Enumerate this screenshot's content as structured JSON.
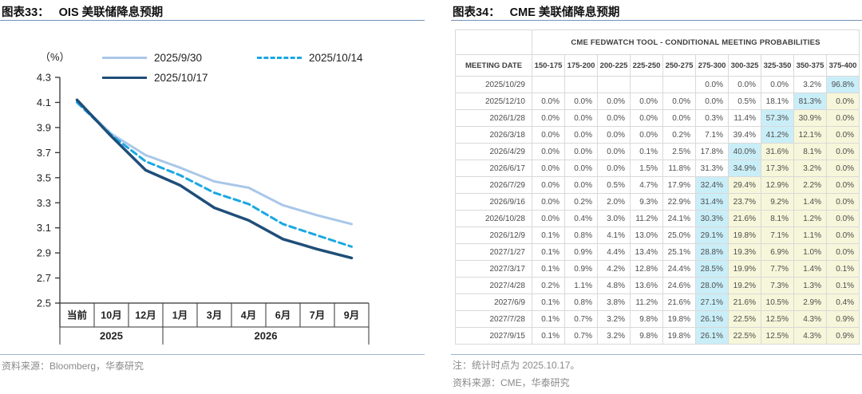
{
  "left_panel": {
    "figure_label": "图表33：",
    "figure_title": "OIS 美联储降息预期",
    "unit_label": "（%）",
    "source_note": "资料来源：Bloomberg，华泰研究"
  },
  "right_panel": {
    "figure_label": "图表34：",
    "figure_title": "CME 美联储降息预期",
    "note": "注：统计时点为 2025.10.17。",
    "source_note": "资料来源：CME，华泰研究"
  },
  "chart_data": [
    {
      "type": "line",
      "title": "OIS 美联储降息预期",
      "unit": "（%）",
      "xlabel": "",
      "ylabel": "%",
      "ylim": [
        2.5,
        4.3
      ],
      "ytick_step": 0.2,
      "grid": false,
      "legend_position": "top",
      "categories": [
        "当前",
        "10月",
        "12月",
        "1月",
        "3月",
        "4月",
        "6月",
        "7月",
        "9月"
      ],
      "category_groups": [
        {
          "label": "2025",
          "span": 3
        },
        {
          "label": "2026",
          "span": 6
        }
      ],
      "series": [
        {
          "name": "2025/9/30",
          "color": "#a9c7e8",
          "style": "solid",
          "width": 3,
          "values": [
            4.11,
            3.85,
            3.68,
            3.58,
            3.47,
            3.42,
            3.28,
            3.2,
            3.13
          ]
        },
        {
          "name": "2025/10/14",
          "color": "#1ba7e3",
          "style": "dashed",
          "width": 3,
          "values": [
            4.1,
            3.84,
            3.63,
            3.52,
            3.38,
            3.29,
            3.13,
            3.04,
            2.95
          ]
        },
        {
          "name": "2025/10/17",
          "color": "#1f4e79",
          "style": "solid",
          "width": 3.5,
          "values": [
            4.12,
            3.83,
            3.56,
            3.44,
            3.26,
            3.16,
            3.01,
            2.93,
            2.86
          ]
        }
      ]
    },
    {
      "type": "table",
      "title": "CME FEDWATCH TOOL - CONDITIONAL MEETING PROBABILITIES",
      "date_header": "MEETING DATE",
      "columns": [
        "150-175",
        "175-200",
        "200-225",
        "225-250",
        "250-275",
        "275-300",
        "300-325",
        "325-350",
        "350-375",
        "375-400"
      ],
      "highlight": {
        "modal": "#c9eef8",
        "tail": "#f6f6da"
      },
      "rows": [
        {
          "date": "2025/10/29",
          "values": [
            "",
            "",
            "",
            "",
            "",
            "0.0%",
            "0.0%",
            "0.0%",
            "3.2%",
            "96.8%"
          ],
          "modal": 9
        },
        {
          "date": "2025/12/10",
          "values": [
            "0.0%",
            "0.0%",
            "0.0%",
            "0.0%",
            "0.0%",
            "0.0%",
            "0.5%",
            "18.1%",
            "81.3%",
            "0.0%"
          ],
          "modal": 8
        },
        {
          "date": "2026/1/28",
          "values": [
            "0.0%",
            "0.0%",
            "0.0%",
            "0.0%",
            "0.0%",
            "0.3%",
            "11.4%",
            "57.3%",
            "30.9%",
            "0.0%"
          ],
          "modal": 7
        },
        {
          "date": "2026/3/18",
          "values": [
            "0.0%",
            "0.0%",
            "0.0%",
            "0.0%",
            "0.2%",
            "7.1%",
            "39.4%",
            "41.2%",
            "12.1%",
            "0.0%"
          ],
          "modal": 7
        },
        {
          "date": "2026/4/29",
          "values": [
            "0.0%",
            "0.0%",
            "0.0%",
            "0.1%",
            "2.5%",
            "17.8%",
            "40.0%",
            "31.6%",
            "8.1%",
            "0.0%"
          ],
          "modal": 6
        },
        {
          "date": "2026/6/17",
          "values": [
            "0.0%",
            "0.0%",
            "0.0%",
            "1.5%",
            "11.8%",
            "31.3%",
            "34.9%",
            "17.3%",
            "3.2%",
            "0.0%"
          ],
          "modal": 6
        },
        {
          "date": "2026/7/29",
          "values": [
            "0.0%",
            "0.0%",
            "0.5%",
            "4.7%",
            "17.9%",
            "32.4%",
            "29.4%",
            "12.9%",
            "2.2%",
            "0.0%"
          ],
          "modal": 5
        },
        {
          "date": "2026/9/16",
          "values": [
            "0.0%",
            "0.2%",
            "2.0%",
            "9.3%",
            "22.9%",
            "31.4%",
            "23.7%",
            "9.2%",
            "1.4%",
            "0.0%"
          ],
          "modal": 5
        },
        {
          "date": "2026/10/28",
          "values": [
            "0.0%",
            "0.4%",
            "3.0%",
            "11.2%",
            "24.1%",
            "30.3%",
            "21.6%",
            "8.1%",
            "1.2%",
            "0.0%"
          ],
          "modal": 5
        },
        {
          "date": "2026/12/9",
          "values": [
            "0.1%",
            "0.8%",
            "4.1%",
            "13.0%",
            "25.0%",
            "29.1%",
            "19.8%",
            "7.1%",
            "1.1%",
            "0.0%"
          ],
          "modal": 5
        },
        {
          "date": "2027/1/27",
          "values": [
            "0.1%",
            "0.9%",
            "4.4%",
            "13.4%",
            "25.1%",
            "28.8%",
            "19.3%",
            "6.9%",
            "1.0%",
            "0.0%"
          ],
          "modal": 5
        },
        {
          "date": "2027/3/17",
          "values": [
            "0.1%",
            "0.9%",
            "4.2%",
            "12.8%",
            "24.4%",
            "28.5%",
            "19.9%",
            "7.7%",
            "1.4%",
            "0.1%"
          ],
          "modal": 5
        },
        {
          "date": "2027/4/28",
          "values": [
            "0.2%",
            "1.1%",
            "4.8%",
            "13.6%",
            "24.6%",
            "28.0%",
            "19.2%",
            "7.3%",
            "1.3%",
            "0.1%"
          ],
          "modal": 5
        },
        {
          "date": "2027/6/9",
          "values": [
            "0.1%",
            "0.8%",
            "3.8%",
            "11.2%",
            "21.6%",
            "27.1%",
            "21.6%",
            "10.5%",
            "2.9%",
            "0.4%"
          ],
          "modal": 5
        },
        {
          "date": "2027/7/28",
          "values": [
            "0.1%",
            "0.7%",
            "3.2%",
            "9.8%",
            "19.8%",
            "26.1%",
            "22.5%",
            "12.5%",
            "4.3%",
            "0.9%"
          ],
          "modal": 5
        },
        {
          "date": "2027/9/15",
          "values": [
            "0.1%",
            "0.7%",
            "3.2%",
            "9.8%",
            "19.8%",
            "26.1%",
            "22.5%",
            "12.5%",
            "4.3%",
            "0.9%"
          ],
          "modal": 5
        }
      ]
    }
  ]
}
